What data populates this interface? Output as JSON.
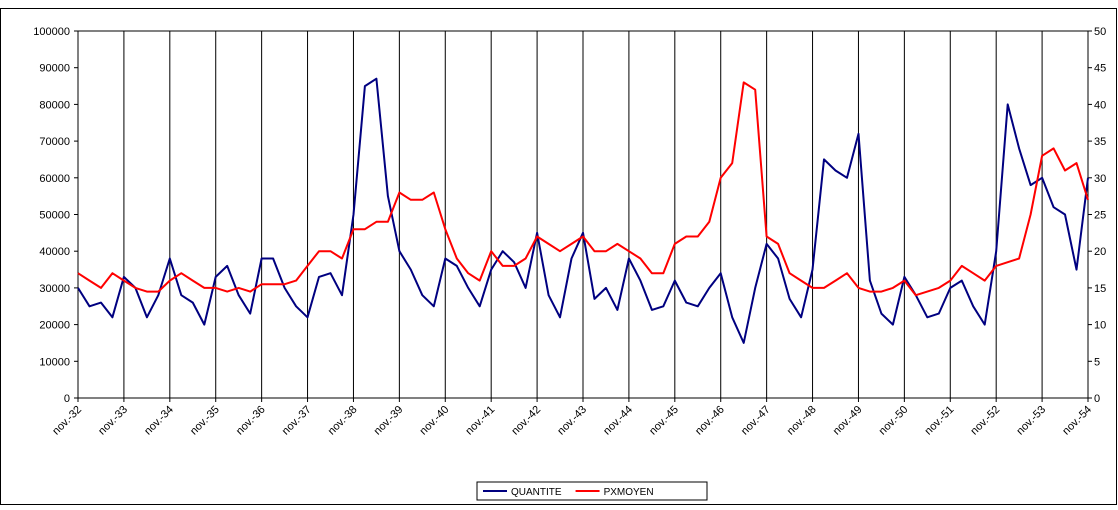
{
  "chart_data": {
    "type": "line",
    "categories": [
      "nov.-32",
      null,
      null,
      null,
      "nov.-33",
      null,
      null,
      null,
      "nov.-34",
      null,
      null,
      null,
      "nov.-35",
      null,
      null,
      null,
      "nov.-36",
      null,
      null,
      null,
      "nov.-37",
      null,
      null,
      null,
      "nov.-38",
      null,
      null,
      null,
      "nov.-39",
      null,
      null,
      null,
      "nov.-40",
      null,
      null,
      null,
      "nov.-41",
      null,
      null,
      null,
      "nov.-42",
      null,
      null,
      null,
      "nov.-43",
      null,
      null,
      null,
      "nov.-44",
      null,
      null,
      null,
      "nov.-45",
      null,
      null,
      null,
      "nov.-46",
      null,
      null,
      null,
      "nov.-47",
      null,
      null,
      null,
      "nov.-48",
      null,
      null,
      null,
      "nov.-49",
      null,
      null,
      null,
      "nov.-50",
      null,
      null,
      null,
      "nov.-51",
      null,
      null,
      null,
      "nov.-52",
      null,
      null,
      null,
      "nov.-53",
      null,
      null,
      null,
      "nov.-54"
    ],
    "series": [
      {
        "name": "QUANTITE",
        "color": "#000080",
        "values": [
          30000,
          25000,
          26000,
          22000,
          33000,
          30000,
          22000,
          28000,
          38000,
          28000,
          26000,
          20000,
          33000,
          36000,
          28000,
          23000,
          38000,
          38000,
          30000,
          25000,
          22000,
          33000,
          34000,
          28000,
          50000,
          85000,
          87000,
          55000,
          40000,
          35000,
          28000,
          25000,
          38000,
          36000,
          30000,
          25000,
          35000,
          40000,
          37000,
          30000,
          45000,
          28000,
          22000,
          38000,
          45000,
          27000,
          30000,
          24000,
          38000,
          32000,
          24000,
          25000,
          32000,
          26000,
          25000,
          30000,
          34000,
          22000,
          15000,
          30000,
          42000,
          38000,
          27000,
          22000,
          35000,
          65000,
          62000,
          60000,
          72000,
          32000,
          23000,
          20000,
          33000,
          28000,
          22000,
          23000,
          30000,
          32000,
          25000,
          20000,
          40000,
          80000,
          68000,
          58000,
          60000,
          52000,
          50000,
          35000,
          60000
        ]
      },
      {
        "name": "PXMOYEN",
        "color": "#ff0000",
        "axis": "y2",
        "values": [
          17,
          16,
          15,
          17,
          16,
          15,
          14.5,
          14.5,
          16,
          17,
          16,
          15,
          15,
          14.5,
          15,
          14.5,
          15.5,
          15.5,
          15.5,
          16,
          18,
          20,
          20,
          19,
          23,
          23,
          24,
          24,
          28,
          27,
          27,
          28,
          23,
          19,
          17,
          16,
          20,
          18,
          18,
          19,
          22,
          21,
          20,
          21,
          22,
          20,
          20,
          21,
          20,
          19,
          17,
          17,
          21,
          22,
          22,
          24,
          30,
          32,
          43,
          42,
          22,
          21,
          17,
          16,
          15,
          15,
          16,
          17,
          15,
          14.5,
          14.5,
          15,
          16,
          14,
          14.5,
          15,
          16,
          18,
          17,
          16,
          18,
          18.5,
          19,
          25,
          33,
          34,
          31,
          32,
          27
        ]
      }
    ],
    "ylim": [
      0,
      100000
    ],
    "yticks": [
      0,
      10000,
      20000,
      30000,
      40000,
      50000,
      60000,
      70000,
      80000,
      90000,
      100000
    ],
    "y2lim": [
      0,
      50
    ],
    "y2ticks": [
      0,
      5,
      10,
      15,
      20,
      25,
      30,
      35,
      40,
      45,
      50
    ],
    "grid": true
  }
}
